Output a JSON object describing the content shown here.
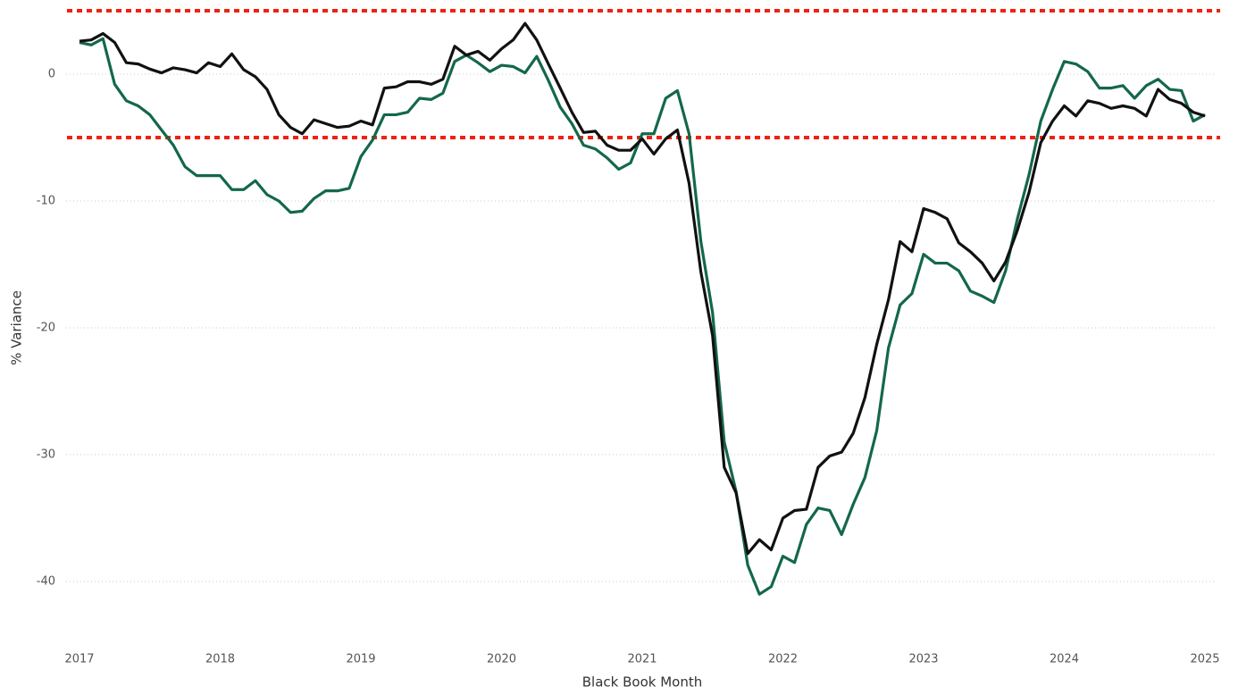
{
  "chart_data": {
    "type": "line",
    "x_label": "Black Book Month",
    "y_label": "% Variance",
    "x": [
      2017,
      2017.083,
      2017.167,
      2017.25,
      2017.333,
      2017.417,
      2017.5,
      2017.583,
      2017.667,
      2017.75,
      2017.833,
      2017.917,
      2018,
      2018.083,
      2018.167,
      2018.25,
      2018.333,
      2018.417,
      2018.5,
      2018.583,
      2018.667,
      2018.75,
      2018.833,
      2018.917,
      2019,
      2019.083,
      2019.167,
      2019.25,
      2019.333,
      2019.417,
      2019.5,
      2019.583,
      2019.667,
      2019.75,
      2019.833,
      2019.917,
      2020,
      2020.083,
      2020.167,
      2020.25,
      2020.333,
      2020.417,
      2020.5,
      2020.583,
      2020.667,
      2020.75,
      2020.833,
      2020.917,
      2021,
      2021.083,
      2021.167,
      2021.25,
      2021.333,
      2021.417,
      2021.5,
      2021.583,
      2021.667,
      2021.75,
      2021.833,
      2021.917,
      2022,
      2022.083,
      2022.167,
      2022.25,
      2022.333,
      2022.417,
      2022.5,
      2022.583,
      2022.667,
      2022.75,
      2022.833,
      2022.917,
      2023,
      2023.083,
      2023.167,
      2023.25,
      2023.333,
      2023.417,
      2023.5,
      2023.583,
      2023.667,
      2023.75,
      2023.833,
      2023.917,
      2024,
      2024.083,
      2024.167,
      2024.25,
      2024.333,
      2024.417,
      2024.5,
      2024.583,
      2024.667,
      2024.75,
      2024.833,
      2024.917,
      2025
    ],
    "series": [
      {
        "color": "#111111",
        "values": [
          2.6,
          2.7,
          3.2,
          2.5,
          0.9,
          0.8,
          0.4,
          0.1,
          0.5,
          0.35,
          0.1,
          0.9,
          0.6,
          1.6,
          0.35,
          -0.2,
          -1.2,
          -3.2,
          -4.2,
          -4.7,
          -3.6,
          -3.9,
          -4.2,
          -4.1,
          -3.7,
          -4.0,
          -1.1,
          -1.0,
          -0.6,
          -0.6,
          -0.8,
          -0.4,
          2.2,
          1.5,
          1.8,
          1.1,
          2.0,
          2.7,
          4.0,
          2.7,
          0.8,
          -1.1,
          -3.0,
          -4.6,
          -4.5,
          -5.6,
          -6.0,
          -6.0,
          -5.1,
          -6.3,
          -5.1,
          -4.4,
          -8.6,
          -15.6,
          -20.6,
          -31.0,
          -33.0,
          -37.8,
          -36.7,
          -37.5,
          -35.0,
          -34.4,
          -34.3,
          -31.0,
          -30.1,
          -29.8,
          -28.3,
          -25.5,
          -21.3,
          -17.8,
          -13.2,
          -14.0,
          -10.6,
          -10.9,
          -11.4,
          -13.3,
          -14.0,
          -14.9,
          -16.3,
          -14.8,
          -12.3,
          -9.3,
          -5.4,
          -3.7,
          -2.5,
          -3.3,
          -2.1,
          -2.3,
          -2.7,
          -2.5,
          -2.7,
          -3.3,
          -1.2,
          -2.0,
          -2.3,
          -3.0,
          -3.3
        ]
      },
      {
        "color": "#136849",
        "values": [
          2.5,
          2.3,
          2.8,
          -0.8,
          -2.1,
          -2.5,
          -3.2,
          -4.4,
          -5.6,
          -7.3,
          -8.0,
          -8.0,
          -8.0,
          -9.1,
          -9.1,
          -8.4,
          -9.5,
          -10.0,
          -10.9,
          -10.8,
          -9.8,
          -9.2,
          -9.2,
          -9.0,
          -6.5,
          -5.2,
          -3.2,
          -3.2,
          -3.0,
          -1.9,
          -2.0,
          -1.5,
          1.0,
          1.5,
          0.9,
          0.2,
          0.7,
          0.6,
          0.1,
          1.4,
          -0.5,
          -2.6,
          -3.9,
          -5.6,
          -5.9,
          -6.6,
          -7.5,
          -7.0,
          -4.7,
          -4.7,
          -1.9,
          -1.3,
          -4.7,
          -13.2,
          -18.8,
          -29.0,
          -32.9,
          -38.7,
          -41.0,
          -40.4,
          -38.0,
          -38.5,
          -35.5,
          -34.2,
          -34.4,
          -36.3,
          -33.9,
          -31.8,
          -28.1,
          -21.6,
          -18.2,
          -17.3,
          -14.2,
          -14.9,
          -14.9,
          -15.5,
          -17.1,
          -17.5,
          -18.0,
          -15.5,
          -11.4,
          -7.9,
          -3.7,
          -1.2,
          1.0,
          0.8,
          0.2,
          -1.1,
          -1.1,
          -0.9,
          -1.9,
          -0.9,
          -0.4,
          -1.2,
          -1.3,
          -3.7,
          -3.2
        ]
      }
    ],
    "reference_lines": {
      "values": [
        5,
        -5
      ],
      "color": "#ee2211",
      "dashed": true
    },
    "xlim": [
      2017,
      2025
    ],
    "xticks": [
      2017,
      2018,
      2019,
      2020,
      2021,
      2022,
      2023,
      2024,
      2025
    ],
    "ylim": [
      -44.5,
      5.5
    ],
    "yticks": [
      0,
      -10,
      -20,
      -30,
      -40
    ],
    "grid": true
  }
}
